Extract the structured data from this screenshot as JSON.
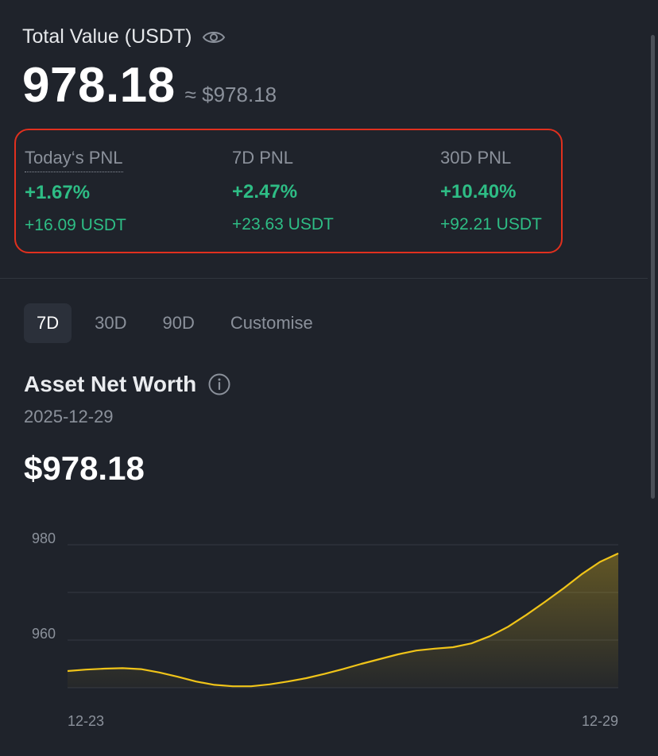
{
  "summary": {
    "total_label": "Total Value (USDT)",
    "value": "978.18",
    "approx": "≈ $978.18"
  },
  "pnl": [
    {
      "title": "Today‘s PNL",
      "percent": "+1.67%",
      "usdt": "+16.09 USDT"
    },
    {
      "title": "7D PNL",
      "percent": "+2.47%",
      "usdt": "+23.63 USDT"
    },
    {
      "title": "30D PNL",
      "percent": "+10.40%",
      "usdt": "+92.21 USDT"
    }
  ],
  "tabs": [
    "7D",
    "30D",
    "90D",
    "Customise"
  ],
  "active_tab": "7D",
  "networth": {
    "title": "Asset Net Worth",
    "date": "2025-12-29",
    "value": "$978.18"
  },
  "colors": {
    "positive": "#2ebd85",
    "highlight_border": "#e0301e",
    "line": "#f0c419",
    "background": "#1f232b"
  },
  "icons": {
    "eye": "eye-icon",
    "info": "info-icon"
  },
  "chart_data": {
    "type": "area",
    "x_tick_labels": [
      "12-23",
      "12-29"
    ],
    "y_tick_labels": [
      "980",
      "960"
    ],
    "ylim": [
      950,
      980
    ],
    "grid": true,
    "series": [
      {
        "x": [
          0,
          0.2,
          0.4,
          0.6,
          0.8,
          1.0,
          1.2,
          1.4,
          1.6,
          1.8,
          2.0,
          2.2,
          2.4,
          2.6,
          2.8,
          3.0,
          3.2,
          3.4,
          3.6,
          3.8,
          4.0,
          4.2,
          4.4,
          4.6,
          4.8,
          5.0,
          5.2,
          5.4,
          5.6,
          5.8,
          6.0
        ],
        "values": [
          953.5,
          953.8,
          954.0,
          954.1,
          953.9,
          953.2,
          952.3,
          951.3,
          950.6,
          950.3,
          950.3,
          950.7,
          951.3,
          952.0,
          952.9,
          953.9,
          955.0,
          956.0,
          957.0,
          957.8,
          958.2,
          958.5,
          959.3,
          960.8,
          962.8,
          965.3,
          968.0,
          970.8,
          973.8,
          976.4,
          978.18
        ]
      }
    ]
  }
}
